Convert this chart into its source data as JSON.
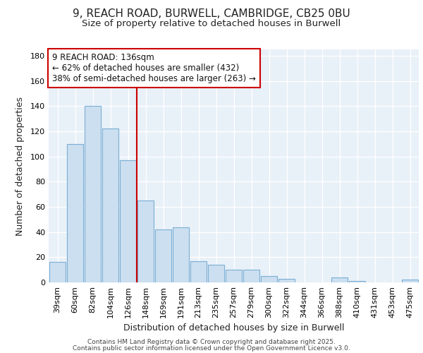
{
  "title_line1": "9, REACH ROAD, BURWELL, CAMBRIDGE, CB25 0BU",
  "title_line2": "Size of property relative to detached houses in Burwell",
  "xlabel": "Distribution of detached houses by size in Burwell",
  "ylabel": "Number of detached properties",
  "bar_color": "#ccdff0",
  "bar_edge_color": "#7aaed4",
  "background_color": "#e8f0f8",
  "grid_color": "#ffffff",
  "categories": [
    "39sqm",
    "60sqm",
    "82sqm",
    "104sqm",
    "126sqm",
    "148sqm",
    "169sqm",
    "191sqm",
    "213sqm",
    "235sqm",
    "257sqm",
    "279sqm",
    "300sqm",
    "322sqm",
    "344sqm",
    "366sqm",
    "388sqm",
    "410sqm",
    "431sqm",
    "453sqm",
    "475sqm"
  ],
  "values": [
    16,
    110,
    140,
    122,
    97,
    65,
    42,
    44,
    17,
    14,
    10,
    10,
    5,
    3,
    0,
    0,
    4,
    1,
    0,
    0,
    2
  ],
  "vline_index": 4.5,
  "vline_color": "#cc0000",
  "ann_title": "9 REACH ROAD: 136sqm",
  "ann_line2": "← 62% of detached houses are smaller (432)",
  "ann_line3": "38% of semi-detached houses are larger (263) →",
  "ylim": [
    0,
    185
  ],
  "yticks": [
    0,
    20,
    40,
    60,
    80,
    100,
    120,
    140,
    160,
    180
  ],
  "footer_line1": "Contains HM Land Registry data © Crown copyright and database right 2025.",
  "footer_line2": "Contains public sector information licensed under the Open Government Licence v3.0.",
  "title_fontsize": 11,
  "subtitle_fontsize": 9.5,
  "axis_label_fontsize": 9,
  "tick_fontsize": 8,
  "annotation_fontsize": 8.5,
  "footer_fontsize": 6.5
}
